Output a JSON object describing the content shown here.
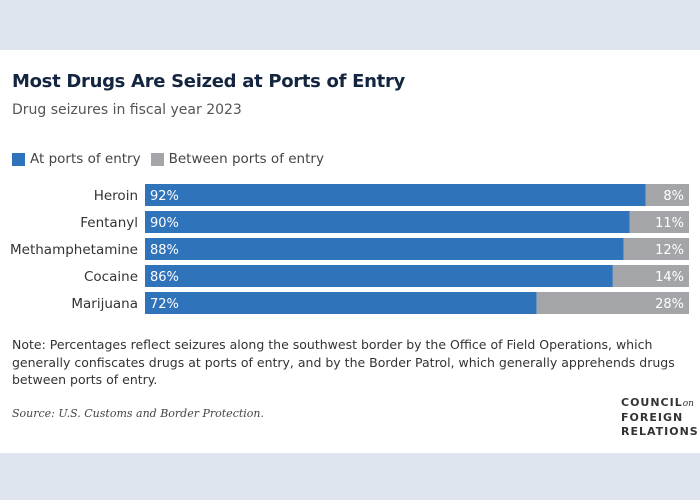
{
  "chart_data": {
    "type": "bar",
    "stacked": true,
    "orientation": "horizontal",
    "title": "Most Drugs Are Seized at Ports of Entry",
    "subtitle": "Drug seizures in fiscal year 2023",
    "categories": [
      "Heroin",
      "Fentanyl",
      "Methamphetamine",
      "Cocaine",
      "Marijuana"
    ],
    "series": [
      {
        "name": "At ports of entry",
        "color": "#2f73bb",
        "values": [
          92,
          90,
          88,
          86,
          72
        ]
      },
      {
        "name": "Between ports of entry",
        "color": "#a3a5a8",
        "values": [
          8,
          11,
          12,
          14,
          28
        ]
      }
    ],
    "xlim": [
      0,
      100
    ],
    "legend": "top-left"
  },
  "note": "Note: Percentages reflect seizures along the southwest border by the Office of Field Operations, which generally confiscates drugs at ports of entry, and by the Border Patrol, which generally apprehends drugs between ports of entry.",
  "source": "Source: U.S. Customs and Border Protection.",
  "logo": {
    "line1": "COUNCIL",
    "on": "on",
    "line2": "FOREIGN",
    "line3": "RELATIONS"
  }
}
